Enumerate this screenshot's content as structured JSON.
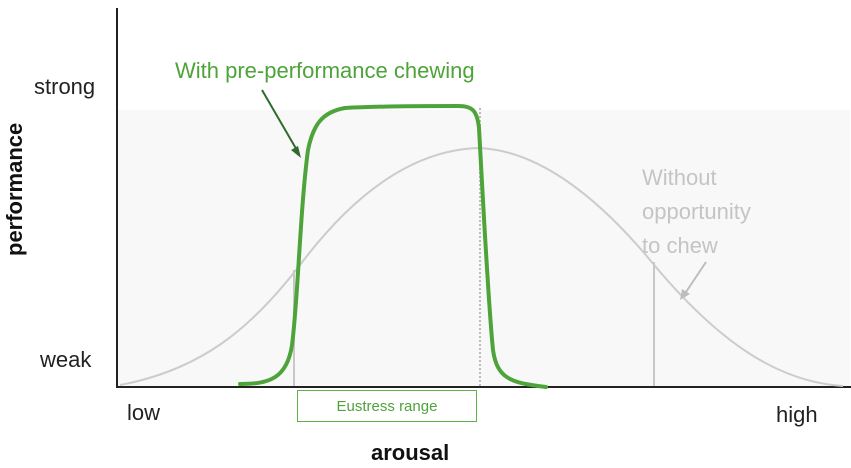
{
  "diagram": {
    "y_axis_title": "performance",
    "x_axis_title": "arousal",
    "y_high_label": "strong",
    "y_low_label": "weak",
    "x_low_label": "low",
    "x_high_label": "high",
    "green_curve_label": "With pre-performance chewing",
    "gray_curve_label": [
      "Without",
      "opportunity",
      "to chew"
    ],
    "range_label": "Eustress range",
    "colors": {
      "green": "#4ea33a",
      "gray_curve": "#c9c9c9",
      "axis": "#222222",
      "plot_background": "#f8f8f8"
    }
  }
}
